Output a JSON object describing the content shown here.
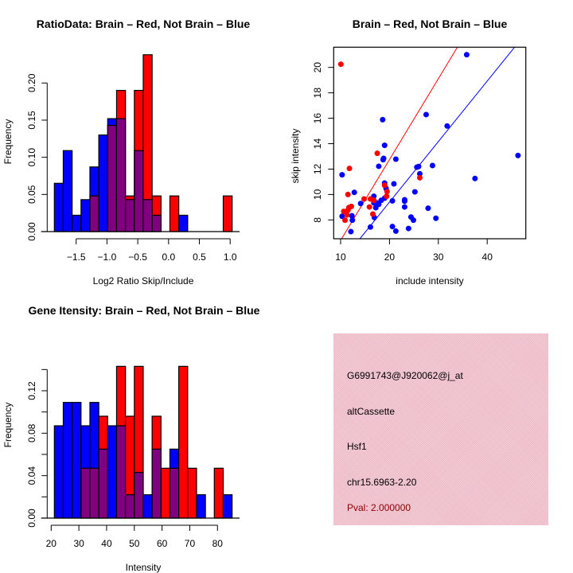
{
  "colors": {
    "brain": "#ff0000",
    "not_brain": "#0000ff",
    "overlap": "#800080",
    "info_bg": "#f0c4cf",
    "pval_text": "#8b0000"
  },
  "chart_data": [
    {
      "id": "ratio",
      "type": "bar",
      "subtype": "overlaid-histogram",
      "title": "RatioData: Brain – Red, Not Brain – Blue",
      "xlabel": "Log2 Ratio Skip/Include",
      "ylabel": "Frequency",
      "bin_start": -1.854,
      "bin_width": 0.1443,
      "x_ticks": [
        -1.5,
        -1.0,
        -0.5,
        0.0,
        0.5,
        1.0
      ],
      "x_tick_labels": [
        "−1.5",
        "−1.0",
        "−0.5",
        "0.0",
        "0.5",
        "1.0"
      ],
      "y_ticks": [
        0,
        0.05,
        0.1,
        0.15,
        0.2
      ],
      "y_tick_labels": [
        "0.00",
        "0.05",
        "0.10",
        "0.15",
        "0.20"
      ],
      "ylim": [
        0,
        0.24
      ],
      "series": [
        {
          "name": "Not Brain",
          "color": "blue",
          "values": [
            0.065,
            0.109,
            0.022,
            0.043,
            0.087,
            0.13,
            0.152,
            0.152,
            0.043,
            0.109,
            0.043,
            0.022,
            0,
            0,
            0.022,
            0,
            0,
            0,
            0,
            0
          ]
        },
        {
          "name": "Brain",
          "color": "red",
          "values": [
            0,
            0,
            0,
            0,
            0.048,
            0,
            0.143,
            0.19,
            0.048,
            0.19,
            0.238,
            0.048,
            0,
            0.048,
            0,
            0,
            0,
            0,
            0,
            0.048
          ]
        }
      ]
    },
    {
      "id": "scatter",
      "type": "scatter",
      "title": "Brain – Red, Not Brain – Blue",
      "xlabel": "include intensity",
      "ylabel": "skip intensity",
      "xlim": [
        8.58,
        47.9
      ],
      "ylim": [
        6.52,
        21.59
      ],
      "x_ticks": [
        10,
        20,
        30,
        40
      ],
      "x_tick_labels": [
        "10",
        "20",
        "30",
        "40"
      ],
      "y_ticks": [
        8,
        10,
        12,
        14,
        16,
        18,
        20
      ],
      "y_tick_labels": [
        "8",
        "10",
        "12",
        "14",
        "16",
        "18",
        "20"
      ],
      "lines": [
        {
          "name": "Brain fit",
          "color": "red",
          "from": [
            10.2,
            6.52
          ],
          "to": [
            33.9,
            21.59
          ]
        },
        {
          "name": "Not Brain fit",
          "color": "blue",
          "from": [
            13.95,
            6.52
          ],
          "to": [
            45.6,
            21.59
          ]
        }
      ],
      "series": [
        {
          "name": "Not Brain",
          "color": "blue",
          "points": [
            [
              35.8,
              21.0
            ],
            [
              46.3,
              13.07
            ],
            [
              27.5,
              16.29
            ],
            [
              31.8,
              15.39
            ],
            [
              18.6,
              15.89
            ],
            [
              19.0,
              13.87
            ],
            [
              18.8,
              12.84
            ],
            [
              18.7,
              12.74
            ],
            [
              17.8,
              12.22
            ],
            [
              21.3,
              12.78
            ],
            [
              10.3,
              11.55
            ],
            [
              25.6,
              12.15
            ],
            [
              25.95,
              12.2
            ],
            [
              26.2,
              11.63
            ],
            [
              28.8,
              12.28
            ],
            [
              37.5,
              11.26
            ],
            [
              19.0,
              10.9
            ],
            [
              20.9,
              10.84
            ],
            [
              19.3,
              10.48
            ],
            [
              25.2,
              10.21
            ],
            [
              12.8,
              10.17
            ],
            [
              16.8,
              9.86
            ],
            [
              20.6,
              9.5
            ],
            [
              23.1,
              9.59
            ],
            [
              23.1,
              9.48
            ],
            [
              19.0,
              9.71
            ],
            [
              18.3,
              9.54
            ],
            [
              17.4,
              9.34
            ],
            [
              16.8,
              9.34
            ],
            [
              17.8,
              9.23
            ],
            [
              17.2,
              8.96
            ],
            [
              14.1,
              9.29
            ],
            [
              23.1,
              9.02
            ],
            [
              27.9,
              8.92
            ],
            [
              10.3,
              8.29
            ],
            [
              12.3,
              8.33
            ],
            [
              12.4,
              7.98
            ],
            [
              16.9,
              8.19
            ],
            [
              24.4,
              8.23
            ],
            [
              24.9,
              7.98
            ],
            [
              29.5,
              8.13
            ],
            [
              20.6,
              7.48
            ],
            [
              21.3,
              7.12
            ],
            [
              23.9,
              7.33
            ],
            [
              16.1,
              7.44
            ],
            [
              12.1,
              7.08
            ]
          ]
        },
        {
          "name": "Brain",
          "color": "red",
          "points": [
            [
              10.05,
              20.25
            ],
            [
              17.5,
              13.24
            ],
            [
              11.8,
              12.05
            ],
            [
              11.5,
              10.0
            ],
            [
              19.0,
              10.73
            ],
            [
              19.5,
              10.23
            ],
            [
              19.4,
              9.86
            ],
            [
              14.8,
              9.65
            ],
            [
              16.1,
              9.65
            ],
            [
              16.8,
              9.54
            ],
            [
              15.9,
              9.02
            ],
            [
              16.6,
              8.46
            ],
            [
              12.2,
              9.06
            ],
            [
              11.7,
              8.98
            ],
            [
              11.5,
              8.77
            ],
            [
              10.65,
              8.67
            ],
            [
              11.3,
              8.4
            ],
            [
              10.9,
              7.98
            ],
            [
              26.2,
              11.32
            ]
          ]
        }
      ]
    },
    {
      "id": "intensity",
      "type": "bar",
      "subtype": "overlaid-histogram",
      "title": "Gene Itensity: Brain – Red, Not Brain – Blue",
      "xlabel": "Intensity",
      "ylabel": "Frequency",
      "bin_start": 21.15,
      "bin_width": 3.206,
      "x_ticks": [
        20,
        30,
        40,
        50,
        60,
        70,
        80
      ],
      "x_tick_labels": [
        "20",
        "30",
        "40",
        "50",
        "60",
        "70",
        "80"
      ],
      "y_ticks": [
        0,
        0.02,
        0.04,
        0.06,
        0.08,
        0.1,
        0.12,
        0.14
      ],
      "y_tick_labels": [
        "0.00",
        "",
        "0.04",
        "",
        "0.08",
        "",
        "0.12",
        ""
      ],
      "ylim": [
        0,
        0.14
      ],
      "series": [
        {
          "name": "Not Brain",
          "color": "blue",
          "values": [
            0.087,
            0.109,
            0.109,
            0.087,
            0.109,
            0.065,
            0.087,
            0.087,
            0.022,
            0.043,
            0.022,
            0.065,
            0,
            0.065,
            0,
            0,
            0.022,
            0,
            0,
            0.022
          ]
        },
        {
          "name": "Brain",
          "color": "red",
          "values": [
            0,
            0,
            0,
            0.047,
            0.047,
            0.096,
            0,
            0.143,
            0.096,
            0.143,
            0,
            0.096,
            0.047,
            0.047,
            0.143,
            0.047,
            0,
            0,
            0.047,
            0
          ]
        }
      ]
    }
  ],
  "info": {
    "probe_id": "G6991743@J920062@j_at",
    "event_type": "altCassette",
    "gene": "Hsf1",
    "location": "chr15.6963-2.20",
    "pval": "Pval: 2.000000"
  }
}
